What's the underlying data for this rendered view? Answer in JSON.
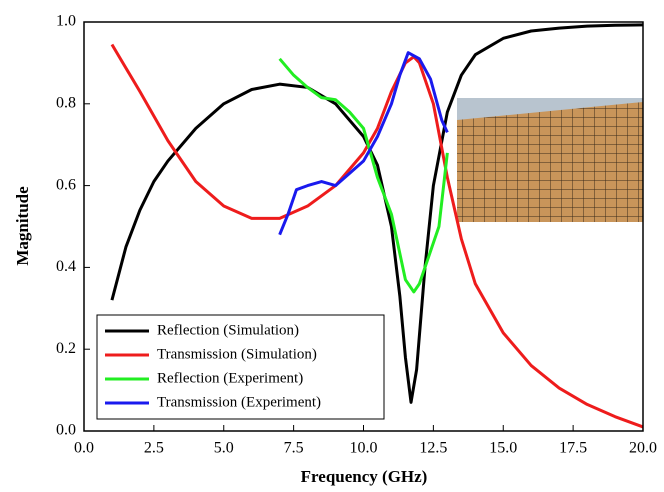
{
  "chart_data": {
    "type": "line",
    "x_label": "Frequency (GHz)",
    "y_label": "Magnitude",
    "xlim": [
      0,
      20
    ],
    "ylim": [
      0,
      1
    ],
    "xticks": [
      {
        "value": 0,
        "label": "0.0"
      },
      2.5,
      {
        "value": 5,
        "label": "5.0"
      },
      7.5,
      {
        "value": 10,
        "label": "10.0"
      },
      12.5,
      {
        "value": 15,
        "label": "15.0"
      },
      17.5,
      {
        "value": 20,
        "label": "20.0"
      }
    ],
    "yticks": [
      {
        "value": 0,
        "label": "0.0"
      },
      0.2,
      0.4,
      0.6,
      0.8,
      {
        "value": 1,
        "label": "1.0"
      }
    ],
    "legend": "lower left",
    "series": [
      {
        "name": "Reflection (Simulation)",
        "color": "#000000",
        "x": [
          1,
          1.5,
          2,
          2.5,
          3,
          4,
          5,
          6,
          7,
          8,
          9,
          10,
          10.5,
          11,
          11.3,
          11.5,
          11.7,
          11.9,
          12.2,
          12.5,
          13,
          13.5,
          14,
          15,
          16,
          17,
          18,
          19,
          20
        ],
        "values": [
          0.32,
          0.45,
          0.54,
          0.61,
          0.66,
          0.74,
          0.8,
          0.835,
          0.848,
          0.84,
          0.8,
          0.72,
          0.65,
          0.5,
          0.33,
          0.18,
          0.07,
          0.15,
          0.4,
          0.6,
          0.78,
          0.87,
          0.92,
          0.96,
          0.978,
          0.985,
          0.99,
          0.992,
          0.993
        ]
      },
      {
        "name": "Transmission (Simulation)",
        "color": "#ee1c1c",
        "x": [
          1,
          2,
          3,
          4,
          5,
          6,
          7,
          8,
          9,
          10,
          10.5,
          11,
          11.5,
          11.8,
          12,
          12.5,
          13,
          13.5,
          14,
          15,
          16,
          17,
          18,
          19,
          20
        ],
        "values": [
          0.945,
          0.83,
          0.71,
          0.61,
          0.55,
          0.52,
          0.52,
          0.55,
          0.6,
          0.68,
          0.74,
          0.83,
          0.9,
          0.915,
          0.9,
          0.8,
          0.62,
          0.47,
          0.36,
          0.24,
          0.16,
          0.105,
          0.065,
          0.035,
          0.01
        ]
      },
      {
        "name": "Reflection (Experiment)",
        "color": "#22ee22",
        "x": [
          7,
          7.5,
          8,
          8.5,
          9,
          9.5,
          10,
          10.5,
          11,
          11.5,
          11.8,
          12,
          12.3,
          12.7,
          13
        ],
        "values": [
          0.91,
          0.87,
          0.84,
          0.815,
          0.81,
          0.78,
          0.74,
          0.62,
          0.53,
          0.37,
          0.34,
          0.36,
          0.42,
          0.5,
          0.68
        ]
      },
      {
        "name": "Transmission (Experiment)",
        "color": "#1a1aee",
        "x": [
          7,
          7.3,
          7.6,
          8,
          8.5,
          9,
          9.5,
          10,
          10.5,
          11,
          11.3,
          11.6,
          12,
          12.4,
          12.8,
          13
        ],
        "values": [
          0.48,
          0.53,
          0.59,
          0.6,
          0.61,
          0.6,
          0.63,
          0.66,
          0.72,
          0.8,
          0.87,
          0.925,
          0.91,
          0.86,
          0.76,
          0.73
        ]
      }
    ]
  }
}
